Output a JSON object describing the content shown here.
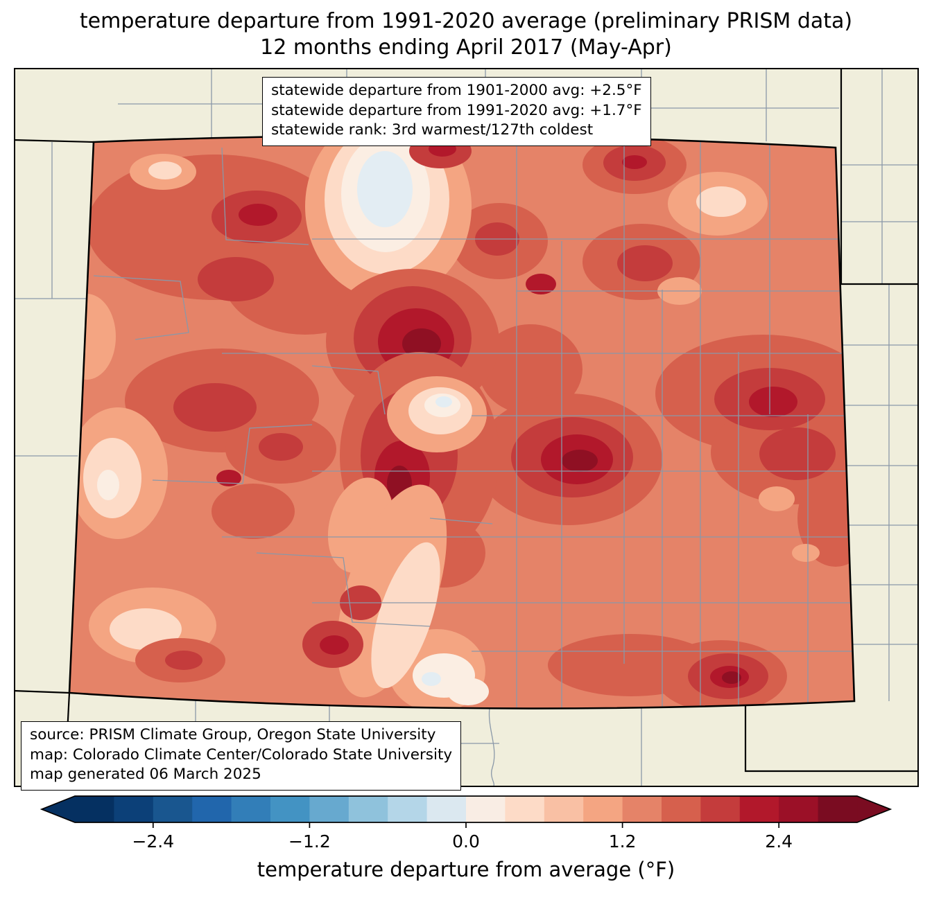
{
  "title": {
    "line1": "temperature departure from 1991-2020 average (preliminary PRISM data)",
    "line2": "12 months ending April 2017 (May-Apr)"
  },
  "stats_box": {
    "lines": [
      "statewide departure from 1901-2000 avg: +2.5°F",
      "statewide departure from 1991-2020 avg: +1.7°F",
      "statewide rank: 3rd warmest/127th coldest"
    ]
  },
  "source_box": {
    "lines": [
      "source: PRISM Climate Group, Oregon State University",
      "map: Colorado Climate Center/Colorado State University",
      "map generated 06 March 2025"
    ]
  },
  "colorbar": {
    "label": "temperature departure from average (°F)",
    "ticks": [
      "−2.4",
      "−1.2",
      "0.0",
      "1.2",
      "2.4"
    ],
    "range": [
      -3.0,
      3.0
    ],
    "segment_colors": [
      "#053061",
      "#0c4078",
      "#19568f",
      "#2166ac",
      "#327eb8",
      "#4393c3",
      "#67a9cf",
      "#8fc2dc",
      "#b4d6e8",
      "#dbe8f0",
      "#f9ede4",
      "#fddbc7",
      "#f9c0a4",
      "#f4a582",
      "#e58368",
      "#d6604d",
      "#c43c3c",
      "#b2182b",
      "#9b1027",
      "#7a0c21"
    ],
    "under_color": "#053061",
    "over_color": "#7a0c21"
  },
  "map_colors": {
    "outside_background": "#f0eedc",
    "county_line": "#8a98a8",
    "state_border": "#000000"
  }
}
